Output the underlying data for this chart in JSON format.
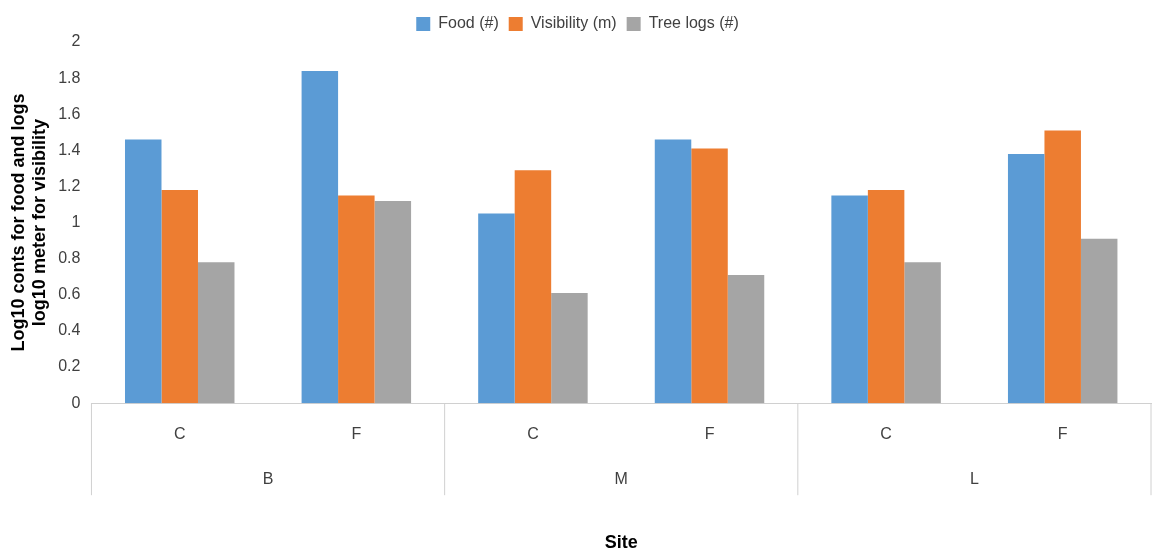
{
  "chart_data": {
    "type": "bar",
    "xlabel": "Site",
    "ylabel": "Log10 conts for food and logs\nlog10 meter for visibility",
    "categories": [
      "C",
      "F",
      "C",
      "F",
      "C",
      "F"
    ],
    "annotations": [
      "B",
      "M",
      "L"
    ],
    "series": [
      {
        "name": "Food (#)",
        "color": "#5b9bd5",
        "values": [
          1.46,
          1.84,
          1.05,
          1.46,
          1.15,
          1.38
        ]
      },
      {
        "name": "Visibility (m)",
        "color": "#ed7d31",
        "values": [
          1.18,
          1.15,
          1.29,
          1.41,
          1.18,
          1.51
        ]
      },
      {
        "name": "Tree logs (#)",
        "color": "#a5a5a5",
        "values": [
          0.78,
          1.12,
          0.61,
          0.71,
          0.78,
          0.91
        ]
      }
    ],
    "ylim": [
      0,
      2
    ],
    "yticks": [
      0,
      0.2,
      0.4,
      0.6,
      0.8,
      1,
      1.2,
      1.4,
      1.6,
      1.8,
      2
    ],
    "grid": false,
    "legend": "top"
  }
}
